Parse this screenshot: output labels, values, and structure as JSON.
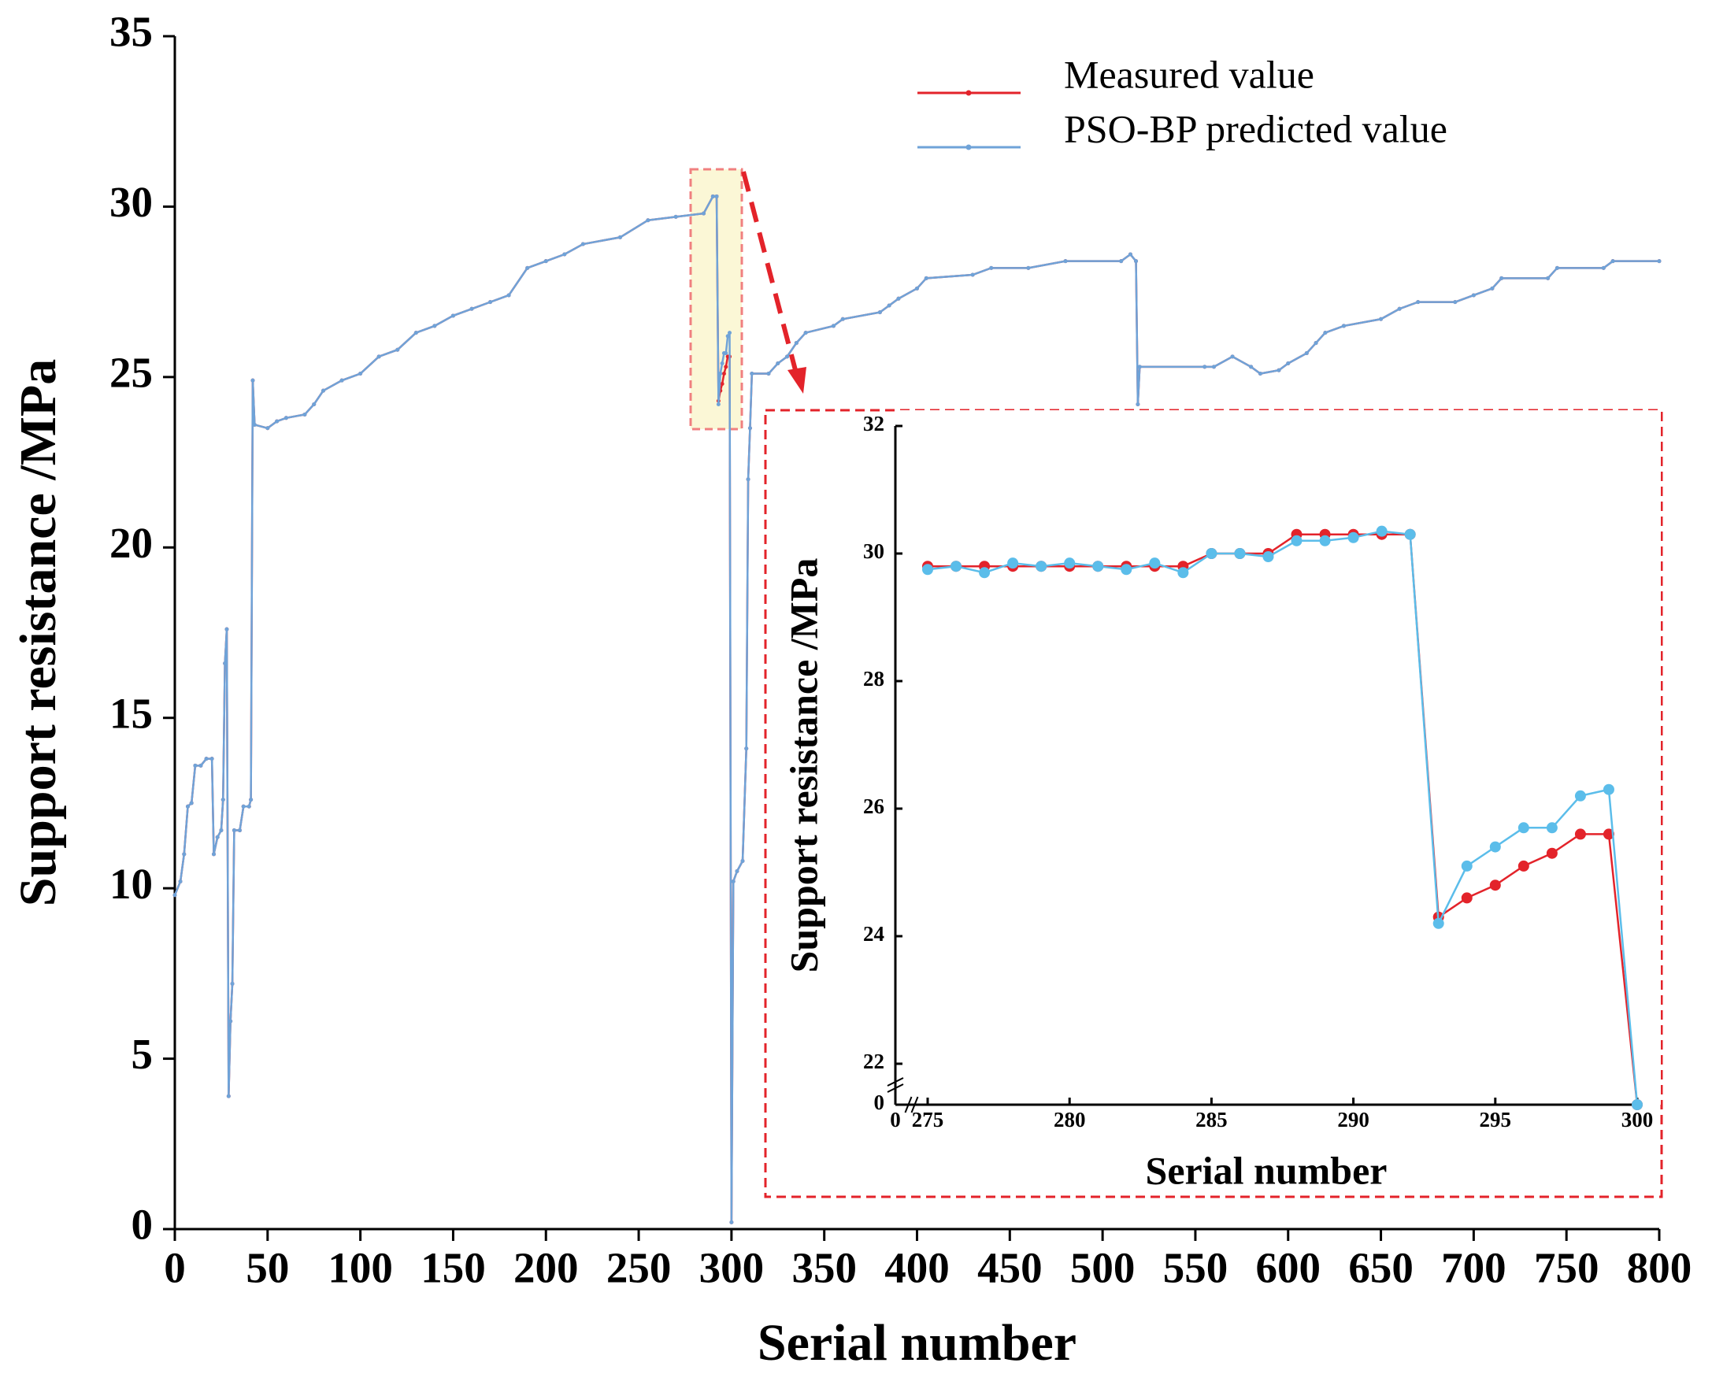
{
  "chart_data": [
    {
      "type": "line",
      "xlabel": "Serial number",
      "ylabel": "Support resistance /MPa",
      "xlim": [
        0,
        800
      ],
      "ylim": [
        0,
        35
      ],
      "xticks": [
        0,
        50,
        100,
        150,
        200,
        250,
        300,
        350,
        400,
        450,
        500,
        550,
        600,
        650,
        700,
        750,
        800
      ],
      "yticks": [
        0,
        5,
        10,
        15,
        20,
        25,
        30,
        35
      ],
      "legend": "upper right",
      "x": [
        0,
        3,
        5,
        7,
        9,
        11,
        14,
        17,
        20,
        21,
        23,
        25,
        26,
        27,
        28,
        29,
        30,
        31,
        32,
        35,
        37,
        40,
        41,
        42,
        43,
        50,
        55,
        60,
        70,
        75,
        80,
        90,
        100,
        110,
        120,
        130,
        140,
        150,
        160,
        170,
        180,
        190,
        200,
        210,
        220,
        240,
        255,
        270,
        285,
        290,
        292,
        293,
        294,
        295,
        296,
        297,
        298,
        299,
        300,
        301,
        303,
        306,
        308,
        309,
        310,
        311,
        320,
        325,
        330,
        335,
        340,
        355,
        360,
        380,
        385,
        390,
        400,
        405,
        430,
        440,
        460,
        480,
        510,
        515,
        518,
        519,
        520,
        555,
        560,
        570,
        580,
        585,
        595,
        600,
        610,
        615,
        620,
        630,
        650,
        660,
        670,
        690,
        700,
        710,
        715,
        740,
        745,
        770,
        775,
        800
      ],
      "series": [
        {
          "name": "Measured value",
          "color": "#e3232a",
          "values": [
            9.8,
            10.2,
            11.0,
            12.4,
            12.5,
            13.6,
            13.6,
            13.8,
            13.8,
            11.0,
            11.5,
            11.7,
            12.6,
            16.6,
            17.6,
            3.9,
            6.1,
            7.2,
            11.7,
            11.7,
            12.4,
            12.4,
            12.6,
            24.9,
            23.6,
            23.5,
            23.7,
            23.8,
            23.9,
            24.2,
            24.6,
            24.9,
            25.1,
            25.6,
            25.8,
            26.3,
            26.5,
            26.8,
            27.0,
            27.2,
            27.4,
            28.2,
            28.4,
            28.6,
            28.9,
            29.1,
            29.6,
            29.7,
            29.8,
            30.3,
            30.3,
            24.3,
            24.6,
            24.8,
            25.1,
            25.3,
            25.6,
            25.6,
            0.2,
            10.2,
            10.5,
            10.8,
            14.1,
            22.0,
            23.5,
            25.1,
            25.1,
            25.4,
            25.6,
            26.0,
            26.3,
            26.5,
            26.7,
            26.9,
            27.1,
            27.3,
            27.6,
            27.9,
            28.0,
            28.2,
            28.2,
            28.4,
            28.4,
            28.6,
            28.4,
            24.2,
            25.3,
            25.3,
            25.3,
            25.6,
            25.3,
            25.1,
            25.2,
            25.4,
            25.7,
            26.0,
            26.3,
            26.5,
            26.7,
            27.0,
            27.2,
            27.2,
            27.4,
            27.6,
            27.9,
            27.9,
            28.2,
            28.2,
            28.4,
            28.4
          ]
        },
        {
          "name": "PSO-BP predicted value",
          "color": "#6fa3d8",
          "values": [
            9.8,
            10.2,
            11.0,
            12.4,
            12.5,
            13.6,
            13.6,
            13.8,
            13.8,
            11.0,
            11.5,
            11.7,
            12.6,
            16.6,
            17.6,
            3.9,
            6.1,
            7.2,
            11.7,
            11.7,
            12.4,
            12.4,
            12.6,
            24.9,
            23.6,
            23.5,
            23.7,
            23.8,
            23.9,
            24.2,
            24.6,
            24.9,
            25.1,
            25.6,
            25.8,
            26.3,
            26.5,
            26.8,
            27.0,
            27.2,
            27.4,
            28.2,
            28.4,
            28.6,
            28.9,
            29.1,
            29.6,
            29.7,
            29.8,
            30.3,
            30.3,
            24.2,
            25.1,
            25.4,
            25.7,
            25.7,
            26.2,
            26.3,
            0.2,
            10.2,
            10.5,
            10.8,
            14.1,
            22.0,
            23.5,
            25.1,
            25.1,
            25.4,
            25.6,
            26.0,
            26.3,
            26.5,
            26.7,
            26.9,
            27.1,
            27.3,
            27.6,
            27.9,
            28.0,
            28.2,
            28.2,
            28.4,
            28.4,
            28.6,
            28.4,
            24.2,
            25.3,
            25.3,
            25.3,
            25.6,
            25.3,
            25.1,
            25.2,
            25.4,
            25.7,
            26.0,
            26.3,
            26.5,
            26.7,
            27.0,
            27.2,
            27.2,
            27.4,
            27.6,
            27.9,
            27.9,
            28.2,
            28.2,
            28.4,
            28.4
          ]
        }
      ]
    },
    {
      "type": "line",
      "xlabel": "Serial number",
      "ylabel": "Support resistance /MPa",
      "xlim": [
        0,
        300
      ],
      "ylim": [
        0,
        32
      ],
      "xbreak": [
        0,
        275
      ],
      "ybreak": [
        0,
        22
      ],
      "xticks": [
        0,
        275,
        280,
        285,
        290,
        295,
        300
      ],
      "yticks": [
        0,
        22,
        24,
        26,
        28,
        30,
        32
      ],
      "x": [
        275,
        276,
        277,
        278,
        279,
        280,
        281,
        282,
        283,
        284,
        285,
        286,
        287,
        288,
        289,
        290,
        291,
        292,
        293,
        294,
        295,
        296,
        297,
        298,
        299,
        300
      ],
      "series": [
        {
          "name": "Measured value",
          "color": "#e3232a",
          "values": [
            29.8,
            29.8,
            29.8,
            29.8,
            29.8,
            29.8,
            29.8,
            29.8,
            29.8,
            29.8,
            30.0,
            30.0,
            30.0,
            30.3,
            30.3,
            30.3,
            30.3,
            30.3,
            24.3,
            24.6,
            24.8,
            25.1,
            25.3,
            25.6,
            25.6,
            0
          ]
        },
        {
          "name": "PSO-BP predicted value",
          "color": "#5bbdea",
          "values": [
            29.75,
            29.8,
            29.7,
            29.85,
            29.8,
            29.85,
            29.8,
            29.75,
            29.85,
            29.7,
            30.0,
            30.0,
            29.95,
            30.2,
            30.2,
            30.25,
            30.35,
            30.3,
            24.2,
            25.1,
            25.4,
            25.7,
            25.7,
            26.2,
            26.3,
            0
          ]
        }
      ]
    }
  ]
}
